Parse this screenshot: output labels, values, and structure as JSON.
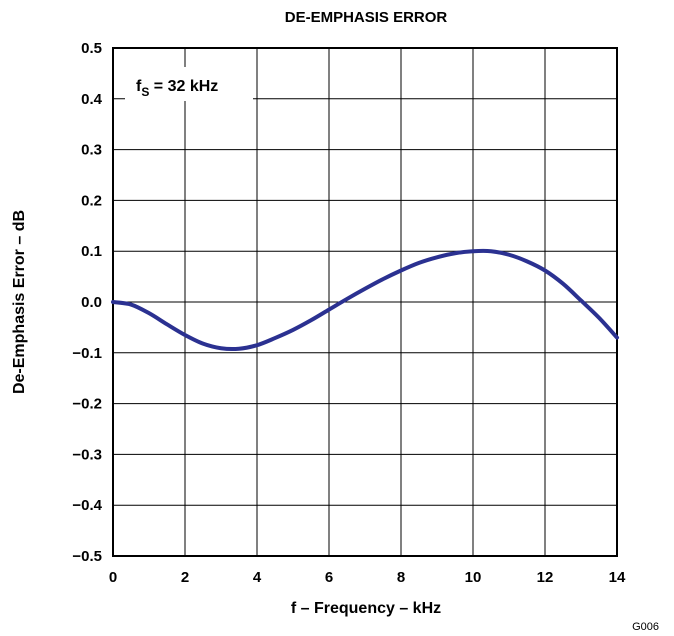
{
  "chart_data": {
    "type": "line",
    "title": "DE-EMPHASIS ERROR",
    "xlabel": "f – Frequency – kHz",
    "ylabel": "De-Emphasis Error – dB",
    "xlim": [
      0,
      14
    ],
    "ylim": [
      -0.5,
      0.5
    ],
    "x_ticks": [
      0,
      2,
      4,
      6,
      8,
      10,
      12,
      14
    ],
    "x_tick_labels": [
      "0",
      "2",
      "4",
      "6",
      "8",
      "10",
      "12",
      "14"
    ],
    "y_ticks": [
      0.5,
      0.4,
      0.3,
      0.2,
      0.1,
      0.0,
      -0.1,
      -0.2,
      -0.3,
      -0.4,
      -0.5
    ],
    "y_tick_labels": [
      "0.5",
      "0.4",
      "0.3",
      "0.2",
      "0.1",
      "0.0",
      "−0.1",
      "−0.2",
      "−0.3",
      "−0.4",
      "−0.5"
    ],
    "grid": true,
    "annotation": {
      "main": "f",
      "sub": "S",
      "rest": " = 32 kHz"
    },
    "figure_id": "G006",
    "line_color": "#2b3191",
    "series": [
      {
        "x": [
          0,
          0.5,
          1,
          1.5,
          2,
          2.5,
          3,
          3.5,
          4,
          4.5,
          5,
          5.5,
          6,
          6.5,
          7,
          7.5,
          8,
          8.5,
          9,
          9.5,
          10,
          10.5,
          11,
          11.5,
          12,
          12.5,
          13,
          13.5,
          14
        ],
        "y": [
          0.0,
          -0.005,
          -0.022,
          -0.044,
          -0.065,
          -0.082,
          -0.091,
          -0.092,
          -0.085,
          -0.071,
          -0.055,
          -0.036,
          -0.015,
          0.006,
          0.026,
          0.045,
          0.062,
          0.077,
          0.088,
          0.096,
          0.1,
          0.1,
          0.093,
          0.08,
          0.062,
          0.036,
          0.003,
          -0.031,
          -0.07
        ]
      }
    ]
  }
}
